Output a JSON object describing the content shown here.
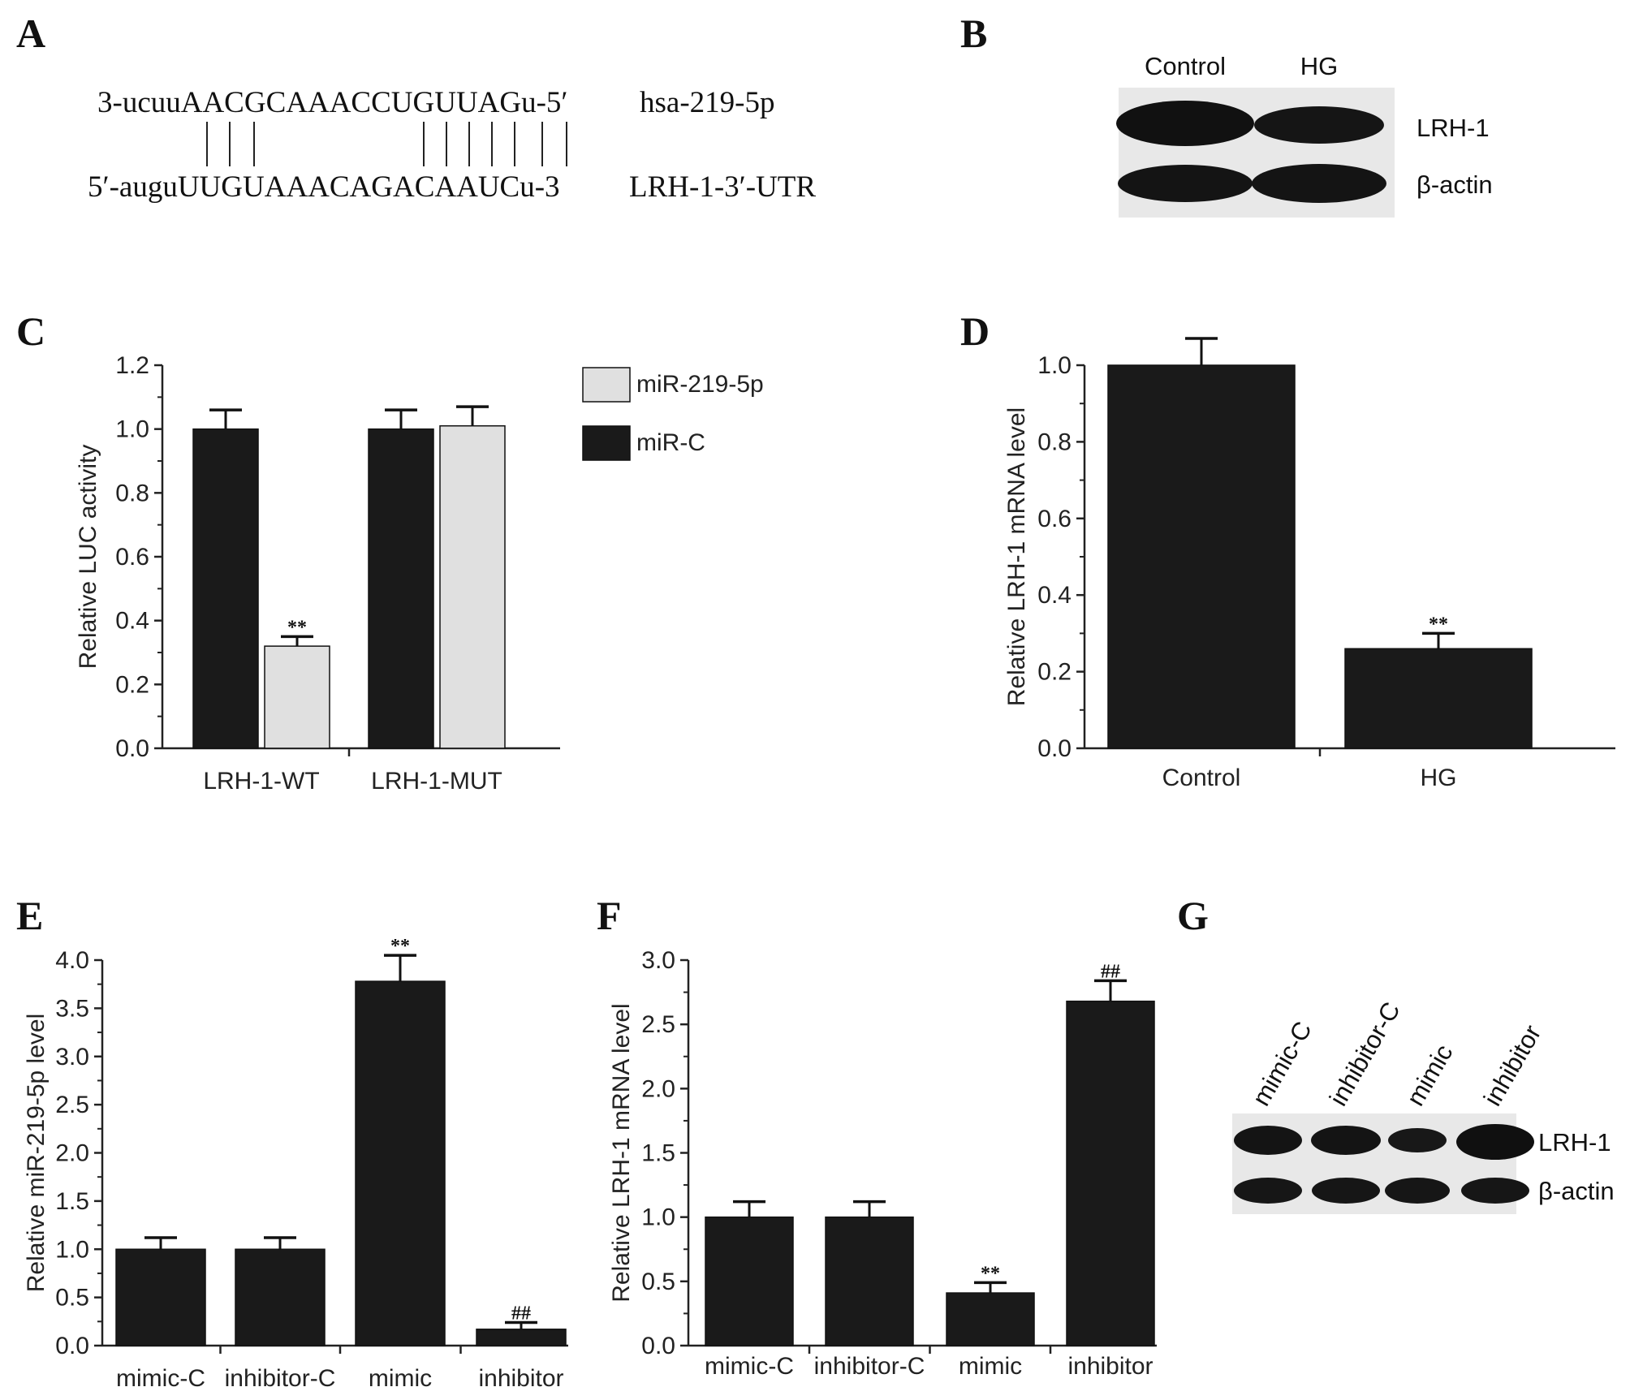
{
  "panels": {
    "A": "A",
    "B": "B",
    "C": "C",
    "D": "D",
    "E": "E",
    "F": "F",
    "G": "G"
  },
  "sequence": {
    "top_strand": "3-ucuuAACGCAAACCUGUUAGu-5′",
    "top_label": "hsa-219-5p",
    "bottom_strand": "5′-auguUUGUAAACAGACAAUCu-3",
    "bottom_label": "LRH-1-3′-UTR"
  },
  "blot_B": {
    "lanes": [
      "Control",
      "HG"
    ],
    "rows": [
      "LRH-1",
      "β-actin"
    ],
    "band_intensity": [
      [
        1.0,
        0.8
      ],
      [
        1.0,
        1.0
      ]
    ]
  },
  "blot_G": {
    "lanes": [
      "mimic-C",
      "inhibitor-C",
      "mimic",
      "inhibitor"
    ],
    "rows": [
      "LRH-1",
      "β-actin"
    ],
    "band_intensity": [
      [
        0.9,
        0.9,
        0.7,
        1.0
      ],
      [
        0.95,
        0.95,
        0.95,
        0.95
      ]
    ]
  },
  "colors": {
    "dark_bar": "#1a1a1a",
    "light_bar": "#e0e0e0",
    "axis": "#222222"
  },
  "chart_data": [
    {
      "id": "C",
      "type": "bar",
      "categories": [
        "LRH-1-WT",
        "LRH-1-MUT"
      ],
      "series": [
        {
          "name": "miR-C",
          "color": "#1a1a1a",
          "values": [
            1.0,
            1.0
          ],
          "errors": [
            0.06,
            0.06
          ],
          "marks": [
            "",
            ""
          ]
        },
        {
          "name": "miR-219-5p",
          "color": "#e0e0e0",
          "values": [
            0.32,
            1.01
          ],
          "errors": [
            0.03,
            0.06
          ],
          "marks": [
            "**",
            ""
          ]
        }
      ],
      "legend_order": [
        "miR-219-5p",
        "miR-C"
      ],
      "legend_position": "top-right",
      "ylabel": "Relative LUC activity",
      "ylim": [
        0,
        1.2
      ],
      "yticks": [
        "0.0",
        "0.2",
        "0.4",
        "0.6",
        "0.8",
        "1.0",
        "1.2"
      ]
    },
    {
      "id": "D",
      "type": "bar",
      "categories": [
        "Control",
        "HG"
      ],
      "series": [
        {
          "values": [
            1.0,
            0.26
          ],
          "errors": [
            0.07,
            0.04
          ],
          "marks": [
            "",
            "**"
          ]
        }
      ],
      "ylabel": "Relative LRH-1 mRNA level",
      "ylim": [
        0,
        1.0
      ],
      "yticks": [
        "0.0",
        "0.2",
        "0.4",
        "0.6",
        "0.8",
        "1.0"
      ]
    },
    {
      "id": "E",
      "type": "bar",
      "categories": [
        "mimic-C",
        "inhibitor-C",
        "mimic",
        "inhibitor"
      ],
      "series": [
        {
          "values": [
            1.0,
            1.0,
            3.78,
            0.17
          ],
          "errors": [
            0.12,
            0.12,
            0.27,
            0.07
          ],
          "marks": [
            "",
            "",
            "**",
            "##"
          ]
        }
      ],
      "ylabel": "Relative miR-219-5p level",
      "ylim": [
        0,
        4.0
      ],
      "yticks": [
        "0.0",
        "0.5",
        "1.0",
        "1.5",
        "2.0",
        "2.5",
        "3.0",
        "3.5",
        "4.0"
      ]
    },
    {
      "id": "F",
      "type": "bar",
      "categories": [
        "mimic-C",
        "inhibitor-C",
        "mimic",
        "inhibitor"
      ],
      "series": [
        {
          "values": [
            1.0,
            1.0,
            0.41,
            2.68
          ],
          "errors": [
            0.12,
            0.12,
            0.08,
            0.16
          ],
          "marks": [
            "",
            "",
            "**",
            "##"
          ]
        }
      ],
      "ylabel": "Relative LRH-1 mRNA level",
      "ylim": [
        0,
        3.0
      ],
      "yticks": [
        "0.0",
        "0.5",
        "1.0",
        "1.5",
        "2.0",
        "2.5",
        "3.0"
      ]
    }
  ]
}
